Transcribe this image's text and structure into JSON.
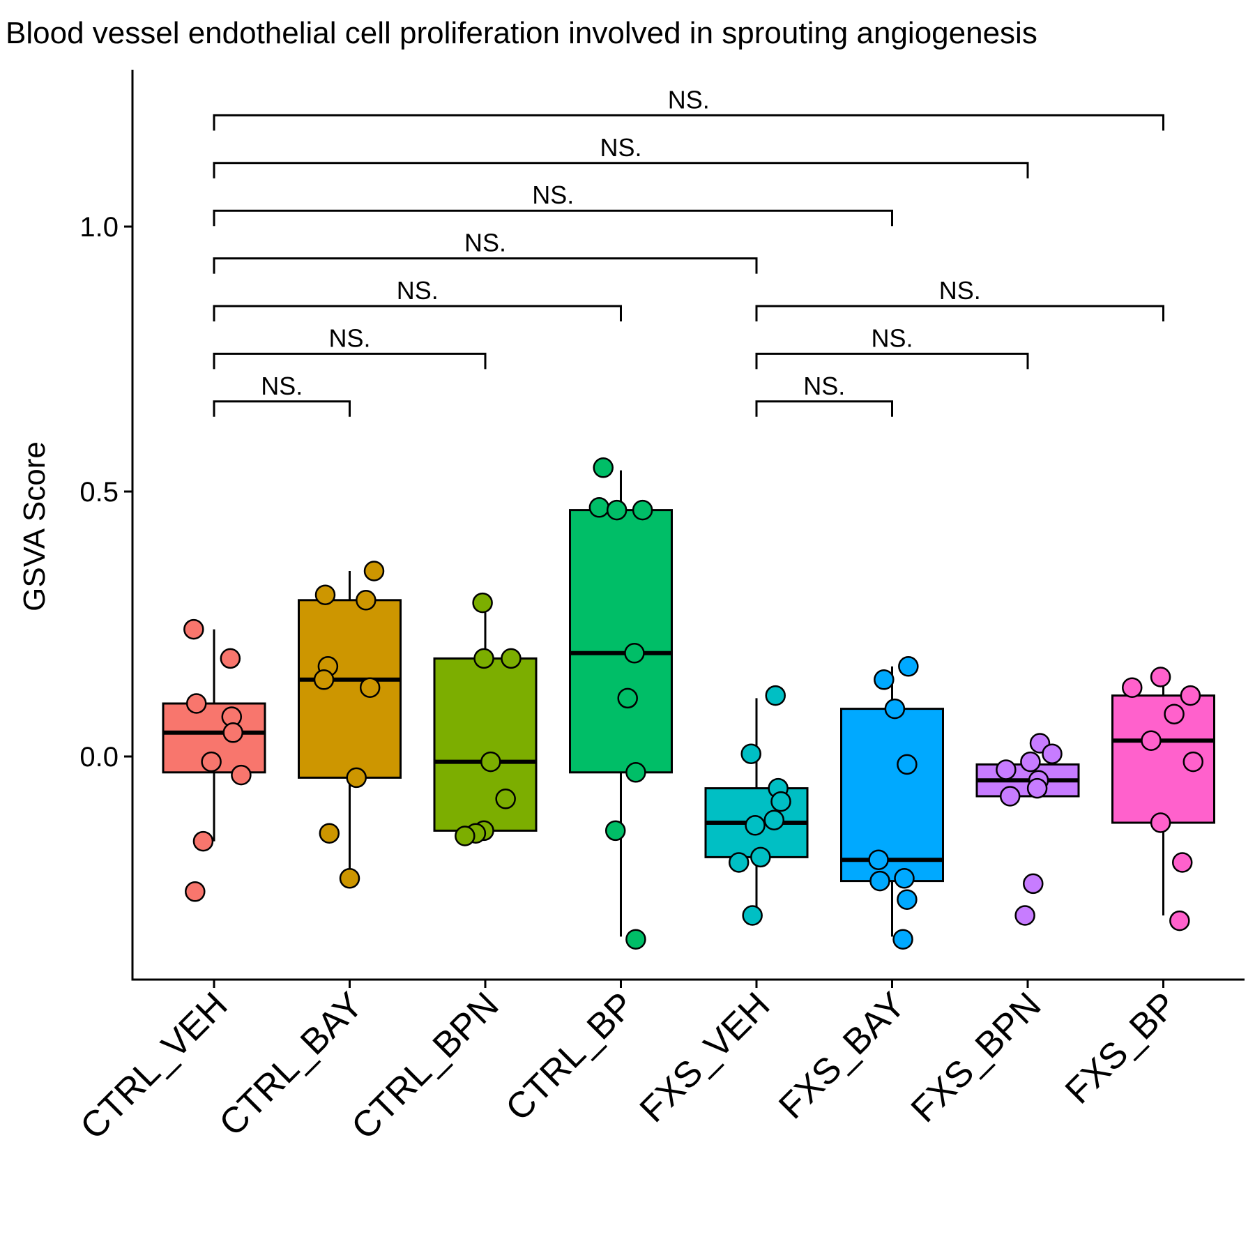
{
  "chart_data": {
    "type": "box",
    "title": "Blood vessel endothelial cell proliferation involved in sprouting angiogenesis",
    "xlabel": "",
    "ylabel": "GSVA Score",
    "ylim": [
      -0.42,
      1.3
    ],
    "yticks": [
      0.0,
      0.5,
      1.0
    ],
    "ytick_labels": [
      "0.0",
      "0.5",
      "1.0"
    ],
    "grid": false,
    "legend": "none",
    "categories": [
      "CTRL_VEH",
      "CTRL_BAY",
      "CTRL_BPN",
      "CTRL_BP",
      "FXS_VEH",
      "FXS_BAY",
      "FXS_BPN",
      "FXS_BP"
    ],
    "colors": [
      "#F8766D",
      "#CD9600",
      "#7CAE00",
      "#00BE67",
      "#00BFC4",
      "#00A9FF",
      "#C77CFF",
      "#FF61CC"
    ],
    "boxes": [
      {
        "q1": -0.03,
        "median": 0.045,
        "q3": 0.1,
        "whisker_low": -0.16,
        "whisker_high": 0.24
      },
      {
        "q1": -0.04,
        "median": 0.145,
        "q3": 0.295,
        "whisker_low": -0.23,
        "whisker_high": 0.35
      },
      {
        "q1": -0.14,
        "median": -0.01,
        "q3": 0.185,
        "whisker_low": -0.14,
        "whisker_high": 0.29
      },
      {
        "q1": -0.03,
        "median": 0.195,
        "q3": 0.465,
        "whisker_low": -0.34,
        "whisker_high": 0.54
      },
      {
        "q1": -0.19,
        "median": -0.125,
        "q3": -0.06,
        "whisker_low": -0.3,
        "whisker_high": 0.11
      },
      {
        "q1": -0.235,
        "median": -0.195,
        "q3": 0.09,
        "whisker_low": -0.34,
        "whisker_high": 0.17
      },
      {
        "q1": -0.075,
        "median": -0.045,
        "q3": -0.015,
        "whisker_low": -0.075,
        "whisker_high": -0.015
      },
      {
        "q1": -0.125,
        "median": 0.03,
        "q3": 0.115,
        "whisker_low": -0.3,
        "whisker_high": 0.15
      }
    ],
    "points": [
      [
        {
          "jitter": -0.15,
          "y": 0.24
        },
        {
          "jitter": 0.12,
          "y": 0.185
        },
        {
          "jitter": -0.13,
          "y": 0.1
        },
        {
          "jitter": 0.13,
          "y": 0.075
        },
        {
          "jitter": 0.14,
          "y": 0.045
        },
        {
          "jitter": -0.02,
          "y": -0.01
        },
        {
          "jitter": 0.2,
          "y": -0.035
        },
        {
          "jitter": -0.08,
          "y": -0.16
        },
        {
          "jitter": -0.14,
          "y": -0.255
        }
      ],
      [
        {
          "jitter": 0.18,
          "y": 0.35
        },
        {
          "jitter": -0.18,
          "y": 0.305
        },
        {
          "jitter": 0.12,
          "y": 0.295
        },
        {
          "jitter": -0.16,
          "y": 0.17
        },
        {
          "jitter": -0.19,
          "y": 0.145
        },
        {
          "jitter": 0.15,
          "y": 0.13
        },
        {
          "jitter": 0.05,
          "y": -0.04
        },
        {
          "jitter": -0.15,
          "y": -0.145
        },
        {
          "jitter": 0.0,
          "y": -0.23
        }
      ],
      [
        {
          "jitter": -0.02,
          "y": 0.29
        },
        {
          "jitter": -0.01,
          "y": 0.185
        },
        {
          "jitter": 0.19,
          "y": 0.185
        },
        {
          "jitter": 0.04,
          "y": -0.01
        },
        {
          "jitter": 0.15,
          "y": -0.08
        },
        {
          "jitter": -0.01,
          "y": -0.14
        },
        {
          "jitter": -0.07,
          "y": -0.145
        },
        {
          "jitter": -0.15,
          "y": -0.15
        }
      ],
      [
        {
          "jitter": -0.13,
          "y": 0.545
        },
        {
          "jitter": -0.16,
          "y": 0.47
        },
        {
          "jitter": -0.03,
          "y": 0.465
        },
        {
          "jitter": 0.16,
          "y": 0.465
        },
        {
          "jitter": 0.1,
          "y": 0.195
        },
        {
          "jitter": 0.05,
          "y": 0.11
        },
        {
          "jitter": 0.11,
          "y": -0.03
        },
        {
          "jitter": -0.04,
          "y": -0.14
        },
        {
          "jitter": 0.11,
          "y": -0.345
        }
      ],
      [
        {
          "jitter": 0.14,
          "y": 0.115
        },
        {
          "jitter": -0.04,
          "y": 0.005
        },
        {
          "jitter": 0.16,
          "y": -0.06
        },
        {
          "jitter": 0.18,
          "y": -0.085
        },
        {
          "jitter": 0.13,
          "y": -0.12
        },
        {
          "jitter": -0.01,
          "y": -0.13
        },
        {
          "jitter": 0.03,
          "y": -0.19
        },
        {
          "jitter": -0.13,
          "y": -0.2
        },
        {
          "jitter": -0.03,
          "y": -0.3
        }
      ],
      [
        {
          "jitter": 0.12,
          "y": 0.17
        },
        {
          "jitter": -0.06,
          "y": 0.145
        },
        {
          "jitter": 0.02,
          "y": 0.09
        },
        {
          "jitter": 0.11,
          "y": -0.015
        },
        {
          "jitter": -0.1,
          "y": -0.195
        },
        {
          "jitter": -0.09,
          "y": -0.235
        },
        {
          "jitter": 0.09,
          "y": -0.23
        },
        {
          "jitter": 0.11,
          "y": -0.27
        },
        {
          "jitter": 0.08,
          "y": -0.345
        }
      ],
      [
        {
          "jitter": 0.09,
          "y": 0.025
        },
        {
          "jitter": 0.18,
          "y": 0.005
        },
        {
          "jitter": 0.02,
          "y": -0.01
        },
        {
          "jitter": -0.16,
          "y": -0.025
        },
        {
          "jitter": 0.08,
          "y": -0.045
        },
        {
          "jitter": 0.07,
          "y": -0.06
        },
        {
          "jitter": -0.13,
          "y": -0.075
        },
        {
          "jitter": 0.04,
          "y": -0.24
        },
        {
          "jitter": -0.02,
          "y": -0.3
        }
      ],
      [
        {
          "jitter": -0.02,
          "y": 0.15
        },
        {
          "jitter": -0.23,
          "y": 0.13
        },
        {
          "jitter": 0.2,
          "y": 0.115
        },
        {
          "jitter": 0.08,
          "y": 0.08
        },
        {
          "jitter": -0.09,
          "y": 0.03
        },
        {
          "jitter": 0.22,
          "y": -0.01
        },
        {
          "jitter": -0.02,
          "y": -0.125
        },
        {
          "jitter": 0.14,
          "y": -0.2
        },
        {
          "jitter": 0.12,
          "y": -0.31
        }
      ]
    ],
    "comparisons": [
      {
        "from": 0,
        "to": 1,
        "y": 0.67,
        "label": "NS."
      },
      {
        "from": 0,
        "to": 2,
        "y": 0.76,
        "label": "NS."
      },
      {
        "from": 0,
        "to": 3,
        "y": 0.85,
        "label": "NS."
      },
      {
        "from": 0,
        "to": 4,
        "y": 0.94,
        "label": "NS."
      },
      {
        "from": 0,
        "to": 5,
        "y": 1.03,
        "label": "NS."
      },
      {
        "from": 0,
        "to": 6,
        "y": 1.12,
        "label": "NS."
      },
      {
        "from": 0,
        "to": 7,
        "y": 1.21,
        "label": "NS."
      },
      {
        "from": 4,
        "to": 5,
        "y": 0.67,
        "label": "NS."
      },
      {
        "from": 4,
        "to": 6,
        "y": 0.76,
        "label": "NS."
      },
      {
        "from": 4,
        "to": 7,
        "y": 0.85,
        "label": "NS."
      }
    ]
  }
}
